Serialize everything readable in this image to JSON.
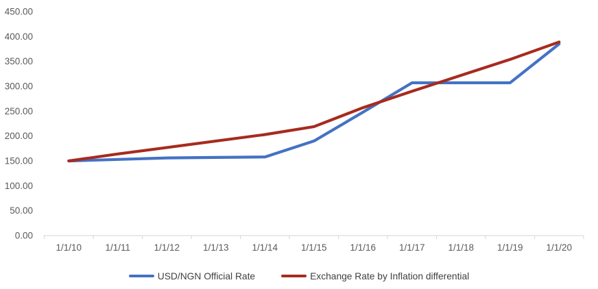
{
  "chart_data": {
    "type": "line",
    "title": "",
    "xlabel": "",
    "ylabel": "",
    "grid": false,
    "legend_position": "bottom",
    "ylim": [
      0,
      450
    ],
    "y_tick_step": 50,
    "y_tick_labels": [
      "0.00",
      "50.00",
      "100.00",
      "150.00",
      "200.00",
      "250.00",
      "300.00",
      "350.00",
      "400.00",
      "450.00"
    ],
    "categories": [
      "1/1/10",
      "1/1/11",
      "1/1/12",
      "1/1/13",
      "1/1/14",
      "1/1/15",
      "1/1/16",
      "1/1/17",
      "1/1/18",
      "1/1/19",
      "1/1/20"
    ],
    "series": [
      {
        "id": "usd-ngn-official-rate",
        "name": "USD/NGN Official Rate",
        "color": "#4472C4",
        "values": [
          150,
          153,
          156,
          157,
          158,
          190,
          248,
          307,
          307,
          307,
          385
        ]
      },
      {
        "id": "exchange-rate-by-inflation-differential",
        "name": "Exchange Rate by Inflation differential",
        "color": "#A62B1F",
        "values": [
          150,
          164,
          177,
          190,
          203,
          219,
          257,
          290,
          322,
          354,
          389
        ]
      }
    ]
  }
}
